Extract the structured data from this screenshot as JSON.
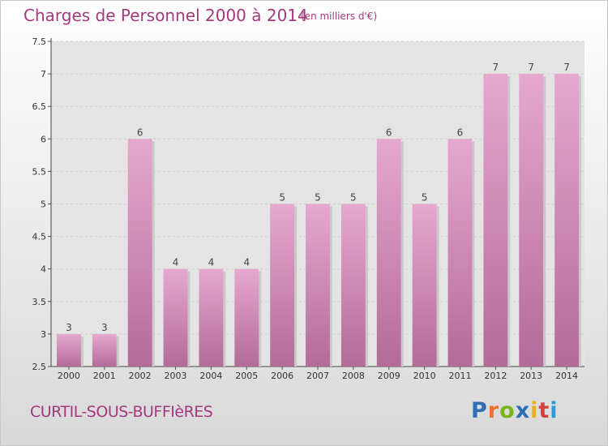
{
  "header": {
    "title": "Charges de Personnel 2000 à 2014",
    "subtitle": "(en milliers d'€)"
  },
  "footer": {
    "commune": "CURTIL-SOUS-BUFFIèRES",
    "logo_text": "Proxiti",
    "logo_colors": [
      "#2f6db5",
      "#e8732a",
      "#7ab51d",
      "#2f6db5",
      "#e8b31a",
      "#d63f3f",
      "#2f9bd6"
    ]
  },
  "chart_data": {
    "type": "bar",
    "title": "Charges de Personnel 2000 à 2014",
    "subtitle": "(en milliers d'€)",
    "categories": [
      "2000",
      "2001",
      "2002",
      "2003",
      "2004",
      "2005",
      "2006",
      "2007",
      "2008",
      "2009",
      "2010",
      "2011",
      "2012",
      "2013",
      "2014"
    ],
    "values": [
      3,
      3,
      6,
      4,
      4,
      4,
      5,
      5,
      5,
      6,
      5,
      6,
      7,
      7,
      7
    ],
    "data_labels": [
      "3",
      "3",
      "6",
      "4",
      "4",
      "4",
      "5",
      "5",
      "5",
      "6",
      "5",
      "6",
      "7",
      "7",
      "7"
    ],
    "ylim": [
      2.5,
      7.5
    ],
    "yticks": [
      "2.5",
      "3",
      "3.5",
      "4",
      "4.5",
      "5",
      "5.5",
      "6",
      "6.5",
      "7",
      "7.5"
    ],
    "grid": true,
    "bar_color_top": "#e6a8cf",
    "bar_color_bottom": "#b36b98",
    "text_color": "#a23a7c"
  }
}
